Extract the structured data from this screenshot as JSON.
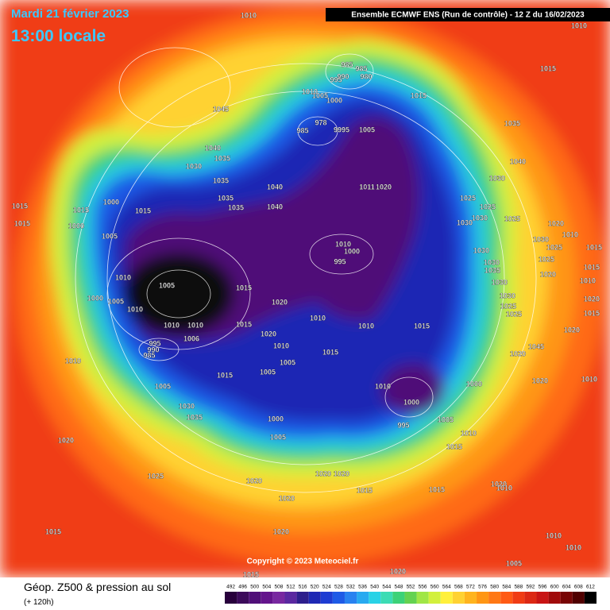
{
  "header": {
    "date": "Mardi 21 février 2023",
    "time": "13:00 locale",
    "run": "Ensemble ECMWF ENS  (Run de contrôle)  -  12 Z du 16/02/2023"
  },
  "footer": {
    "product": "Géop. Z500 & pression au sol",
    "lead": "(+ 120h)",
    "copyright": "Copyright © 2023 Meteociel.fr"
  },
  "colorbar": {
    "values": [
      492,
      496,
      500,
      504,
      508,
      512,
      516,
      520,
      524,
      528,
      532,
      536,
      540,
      544,
      548,
      552,
      556,
      560,
      564,
      568,
      572,
      576,
      580,
      584,
      588,
      592,
      596,
      600,
      604,
      608,
      612
    ],
    "colors": [
      "#28003c",
      "#3c0a5a",
      "#500f78",
      "#64148c",
      "#7828a0",
      "#5a28a0",
      "#2d1e8c",
      "#1e28b4",
      "#1e3cd2",
      "#1e5ae6",
      "#2882f0",
      "#28aaf0",
      "#28d2e6",
      "#3cdcb4",
      "#3cd278",
      "#64d250",
      "#a0e646",
      "#d2f03c",
      "#fff03c",
      "#ffd232",
      "#ffb41e",
      "#ff9614",
      "#ff7814",
      "#ff5a14",
      "#f03c14",
      "#dc2814",
      "#c81414",
      "#a00a0a",
      "#780505",
      "#500000",
      "#000000"
    ]
  },
  "isobar_labels": [
    1010,
    1015,
    1015,
    1015,
    1000,
    1000,
    1015,
    1005,
    1010,
    1000,
    1005,
    1010,
    1005,
    1010,
    1010,
    1006,
    995,
    990,
    985,
    1010,
    1005,
    1015,
    1030,
    1035,
    1020,
    1025,
    1020,
    1015,
    1045,
    1040,
    1035,
    1030,
    1035,
    1035,
    1035,
    1040,
    1040,
    1015,
    1020,
    1015,
    1020,
    1010,
    1005,
    1005,
    1000,
    1005,
    1010,
    1015,
    1010,
    1015,
    1010,
    1000,
    995,
    1005,
    1000,
    1010,
    1015,
    985,
    985,
    990,
    980,
    995,
    1010,
    1005,
    1000,
    985,
    978,
    9995,
    1005,
    1015,
    1011,
    1020,
    1010,
    1000,
    995,
    1035,
    1040,
    1030,
    1025,
    1025,
    1030,
    1030,
    1025,
    1030,
    1030,
    1035,
    1030,
    1030,
    1025,
    1025,
    1020,
    1045,
    1020,
    1020,
    1030,
    1025,
    1025,
    1020,
    1010,
    1015,
    1015,
    1010,
    1020,
    1015,
    1020,
    1010,
    1015,
    1010,
    1020,
    1010,
    1010,
    1010,
    1005,
    1015,
    1020,
    1020,
    1020,
    1015,
    1020,
    1020,
    1015
  ]
}
